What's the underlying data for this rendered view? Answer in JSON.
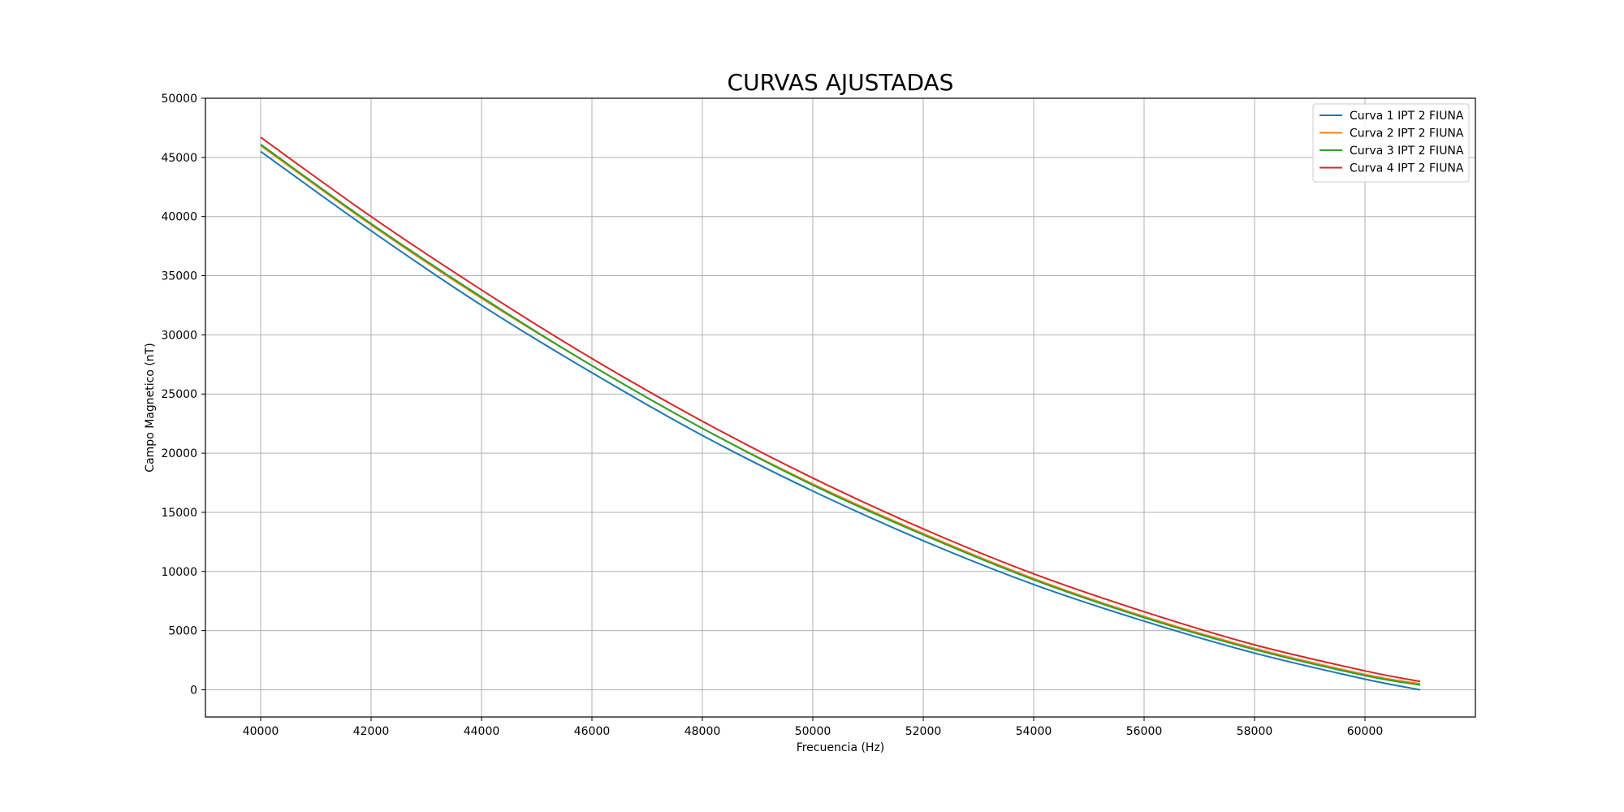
{
  "chart_data": {
    "type": "line",
    "title": "CURVAS AJUSTADAS",
    "xlabel": "Frecuencia (Hz)",
    "ylabel": "Campo Magnetico (nT)",
    "xlim": [
      39000,
      62000
    ],
    "ylim": [
      -2300,
      50000
    ],
    "xticks": [
      40000,
      42000,
      44000,
      46000,
      48000,
      50000,
      52000,
      54000,
      56000,
      58000,
      60000
    ],
    "yticks": [
      0,
      5000,
      10000,
      15000,
      20000,
      25000,
      30000,
      35000,
      40000,
      45000,
      50000
    ],
    "grid": true,
    "legend_position": "top-right",
    "x": [
      40000,
      42000,
      44000,
      46000,
      48000,
      50000,
      52000,
      54000,
      56000,
      58000,
      60000,
      61000
    ],
    "series": [
      {
        "name": "Curva 1 IPT 2 FIUNA",
        "color": "#1f77b4",
        "values": [
          45500,
          38800,
          32500,
          26800,
          21500,
          16800,
          12600,
          8900,
          5800,
          3100,
          900,
          0
        ]
      },
      {
        "name": "Curva 2 IPT 2 FIUNA",
        "color": "#ff7f0e",
        "values": [
          46000,
          39300,
          33100,
          27400,
          22100,
          17400,
          13200,
          9400,
          6200,
          3500,
          1300,
          500
        ]
      },
      {
        "name": "Curva 3 IPT 2 FIUNA",
        "color": "#2ca02c",
        "values": [
          46100,
          39400,
          33200,
          27400,
          22100,
          17300,
          13100,
          9300,
          6100,
          3400,
          1200,
          400
        ]
      },
      {
        "name": "Curva 4 IPT 2 FIUNA",
        "color": "#d62728",
        "values": [
          46700,
          40000,
          33800,
          28000,
          22700,
          17900,
          13600,
          9800,
          6600,
          3800,
          1600,
          700
        ]
      }
    ]
  }
}
